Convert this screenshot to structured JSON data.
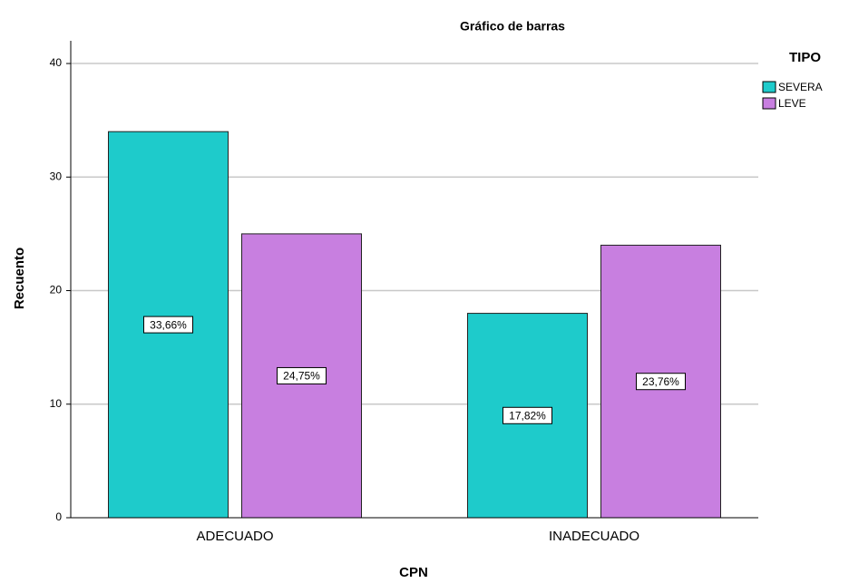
{
  "chart_data": {
    "type": "bar",
    "title": "Gráfico de barras",
    "x_label": "CPN",
    "y_label": "Recuento",
    "categories": [
      "ADECUADO",
      "INADECUADO"
    ],
    "legend_title": "TIPO",
    "legend": "right",
    "series": [
      {
        "name": "SEVERA",
        "color": "#1ecbcb",
        "values": [
          34,
          18
        ],
        "labels": [
          "33,66%",
          "17,82%"
        ]
      },
      {
        "name": "LEVE",
        "color": "#c87fe0",
        "values": [
          25,
          24
        ],
        "labels": [
          "24,75%",
          "23,76%"
        ]
      }
    ],
    "ylim": [
      0,
      42
    ],
    "yticks": [
      0,
      10,
      20,
      30,
      40
    ],
    "grid": true
  }
}
